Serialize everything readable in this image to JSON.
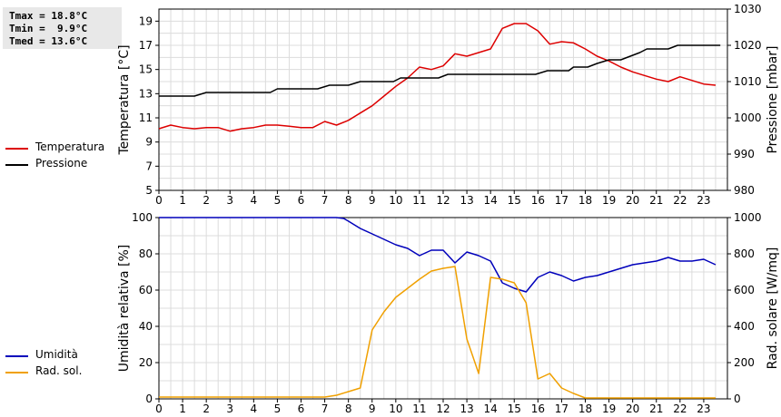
{
  "stats": {
    "tmax": "Tmax = 18.8°C",
    "tmin": "Tmin =  9.9°C",
    "tmed": "Tmed = 13.6°C"
  },
  "legend_top": [
    {
      "label": "Temperatura",
      "color": "#dd0000"
    },
    {
      "label": "Pressione",
      "color": "#000000"
    }
  ],
  "legend_bottom": [
    {
      "label": "Umidità",
      "color": "#0000bb"
    },
    {
      "label": "Rad. sol.",
      "color": "#f0a000"
    }
  ],
  "chart_data": [
    {
      "type": "line",
      "xlim": [
        0,
        24
      ],
      "x_ticks": [
        0,
        1,
        2,
        3,
        4,
        5,
        6,
        7,
        8,
        9,
        10,
        11,
        12,
        13,
        14,
        15,
        16,
        17,
        18,
        19,
        20,
        21,
        22,
        23
      ],
      "grid": true,
      "left_axis": {
        "ylabel": "Temperatura [°C]",
        "ylim": [
          5,
          20
        ],
        "ticks": [
          5,
          7,
          9,
          11,
          13,
          15,
          17,
          19
        ]
      },
      "right_axis": {
        "ylabel": "Pressione [mbar]",
        "ylim": [
          980,
          1030
        ],
        "ticks": [
          980,
          990,
          1000,
          1010,
          1020,
          1030
        ]
      },
      "series": [
        {
          "name": "Temperatura",
          "axis": "left",
          "color": "#dd0000",
          "x": [
            0,
            0.5,
            1,
            1.5,
            2,
            2.5,
            3,
            3.5,
            4,
            4.5,
            5,
            5.5,
            6,
            6.5,
            7,
            7.5,
            8,
            8.5,
            9,
            9.5,
            10,
            10.5,
            11,
            11.5,
            12,
            12.5,
            13,
            13.5,
            14,
            14.5,
            15,
            15.5,
            16,
            16.5,
            17,
            17.5,
            18,
            18.5,
            19,
            19.5,
            20,
            20.5,
            21,
            21.5,
            22,
            22.5,
            23,
            23.5
          ],
          "y": [
            10.1,
            10.4,
            10.2,
            10.1,
            10.2,
            10.2,
            9.9,
            10.1,
            10.2,
            10.4,
            10.4,
            10.3,
            10.2,
            10.2,
            10.7,
            10.4,
            10.8,
            11.4,
            12.0,
            12.8,
            13.6,
            14.3,
            15.2,
            15.0,
            15.3,
            16.3,
            16.1,
            16.4,
            16.7,
            18.4,
            18.8,
            18.8,
            18.2,
            17.1,
            17.3,
            17.2,
            16.7,
            16.1,
            15.7,
            15.2,
            14.8,
            14.5,
            14.2,
            14.0,
            14.4,
            14.1,
            13.8,
            13.7
          ]
        },
        {
          "name": "Pressione",
          "axis": "right",
          "color": "#000000",
          "x": [
            0,
            1.5,
            2,
            4.7,
            5,
            6.7,
            7.2,
            8,
            8.5,
            9.9,
            10.2,
            11.8,
            12.2,
            15.9,
            16.4,
            17.3,
            17.5,
            18.1,
            18.5,
            19,
            19.5,
            20.3,
            20.6,
            21.5,
            21.9,
            23.7
          ],
          "y": [
            1006,
            1006,
            1007,
            1007,
            1008,
            1008,
            1009,
            1009,
            1010,
            1010,
            1011,
            1011,
            1012,
            1012,
            1013,
            1013,
            1014,
            1014,
            1015,
            1016,
            1016,
            1018,
            1019,
            1019,
            1020,
            1020
          ]
        }
      ]
    },
    {
      "type": "line",
      "xlim": [
        0,
        24
      ],
      "x_ticks": [
        0,
        1,
        2,
        3,
        4,
        5,
        6,
        7,
        8,
        9,
        10,
        11,
        12,
        13,
        14,
        15,
        16,
        17,
        18,
        19,
        20,
        21,
        22,
        23
      ],
      "grid": true,
      "left_axis": {
        "ylabel": "Umidità relativa [%]",
        "ylim": [
          0,
          100
        ],
        "ticks": [
          0,
          20,
          40,
          60,
          80,
          100
        ]
      },
      "right_axis": {
        "ylabel": "Rad. solare [W/mq]",
        "ylim": [
          0,
          1000
        ],
        "ticks": [
          0,
          200,
          400,
          600,
          800,
          1000
        ]
      },
      "series": [
        {
          "name": "Umidità",
          "axis": "left",
          "color": "#0000bb",
          "x": [
            0,
            7.5,
            7.8,
            8,
            8.5,
            9,
            9.5,
            10,
            10.5,
            11,
            11.5,
            12,
            12.5,
            13,
            13.5,
            14,
            14.5,
            15,
            15.5,
            16,
            16.5,
            17,
            17.5,
            18,
            18.5,
            19,
            19.5,
            20,
            20.5,
            21,
            21.5,
            22,
            22.5,
            23,
            23.5
          ],
          "y": [
            100,
            100,
            99.5,
            98,
            94,
            91,
            88,
            85,
            83,
            79,
            82,
            82,
            75,
            81,
            79,
            76,
            64,
            61,
            59,
            67,
            70,
            68,
            65,
            67,
            68,
            70,
            72,
            74,
            75,
            76,
            78,
            76,
            76,
            77,
            74
          ]
        },
        {
          "name": "Rad. sol.",
          "axis": "right",
          "color": "#f0a000",
          "x": [
            0,
            7,
            7.5,
            8,
            8.5,
            9,
            9.5,
            10,
            10.5,
            11,
            11.5,
            12,
            12.5,
            13,
            13.5,
            14,
            14.5,
            15,
            15.5,
            16,
            16.5,
            17,
            17.5,
            18,
            18.5,
            19,
            23.5
          ],
          "y": [
            10,
            10,
            20,
            40,
            60,
            380,
            480,
            560,
            610,
            660,
            705,
            720,
            730,
            330,
            140,
            670,
            660,
            640,
            530,
            110,
            140,
            60,
            30,
            5,
            5,
            5,
            5
          ]
        }
      ]
    }
  ]
}
